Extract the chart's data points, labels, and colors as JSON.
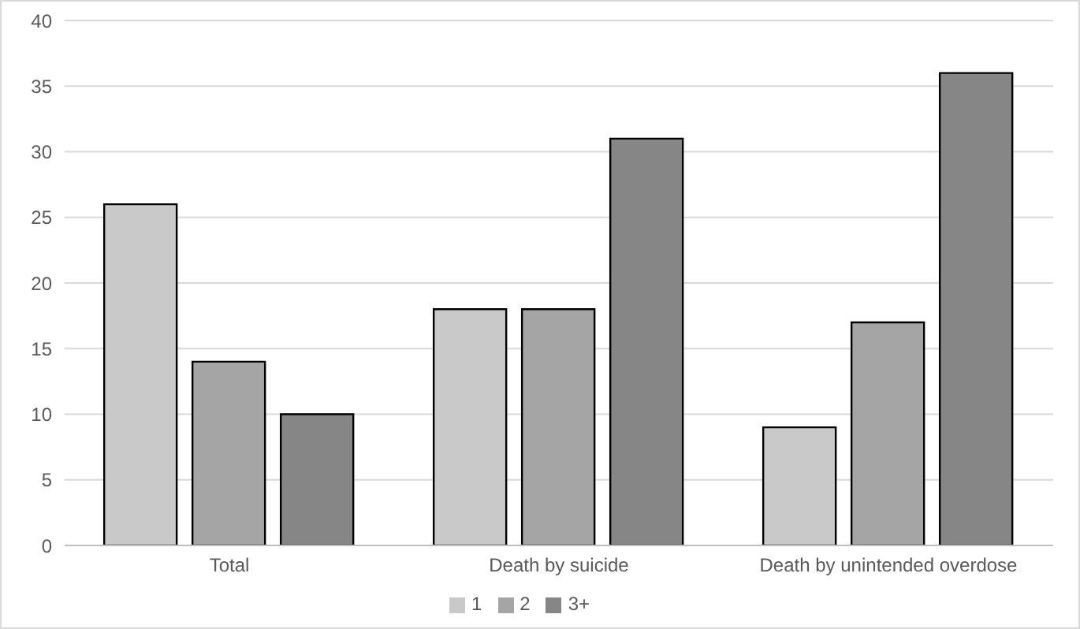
{
  "chart_data": {
    "type": "bar",
    "categories": [
      "Total",
      "Death by suicide",
      "Death by unintended overdose"
    ],
    "series": [
      {
        "name": "1",
        "color": "#c9c9c9",
        "values": [
          26,
          18,
          9
        ]
      },
      {
        "name": "2",
        "color": "#a5a5a5",
        "values": [
          14,
          18,
          17
        ]
      },
      {
        "name": "3+",
        "color": "#868686",
        "values": [
          10,
          31,
          36
        ]
      }
    ],
    "ylim": [
      0,
      40
    ],
    "yticks": [
      0,
      5,
      10,
      15,
      20,
      25,
      30,
      35,
      40
    ],
    "grid": "y",
    "legend": "bottom"
  }
}
